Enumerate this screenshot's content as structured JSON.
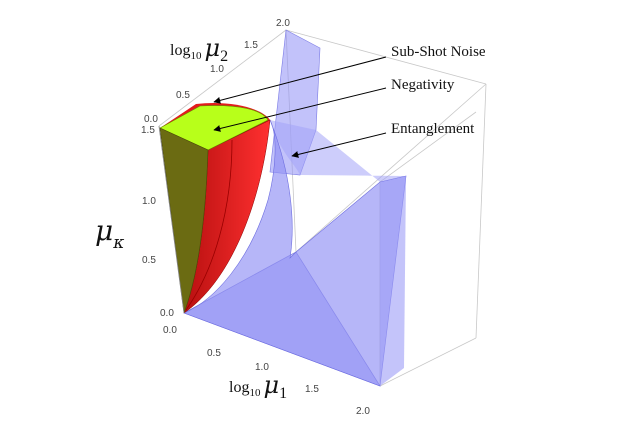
{
  "axes": {
    "mu1": {
      "prefix": "log",
      "base": "10",
      "symbol": "μ",
      "subscript": "1",
      "ticks": [
        "0.0",
        "0.5",
        "1.0",
        "1.5",
        "2.0"
      ]
    },
    "mu2": {
      "prefix": "log",
      "base": "10",
      "symbol": "μ",
      "subscript": "2",
      "ticks": [
        "0.0",
        "0.5",
        "1.0",
        "1.5",
        "2.0"
      ]
    },
    "mukappa": {
      "symbol": "μ",
      "subscript": "κ",
      "ticks": [
        "0.0",
        "0.5",
        "1.0",
        "1.5"
      ]
    }
  },
  "annotations": {
    "sub_shot_noise": "Sub-Shot Noise",
    "negativity": "Negativity",
    "entanglement": "Entanglement"
  },
  "colors": {
    "entanglement": "#8f8ff5",
    "negativity": "#e31c1c",
    "sub_shot_noise_top": "#b8ff1a",
    "sub_shot_noise_side": "#6b6b12"
  }
}
